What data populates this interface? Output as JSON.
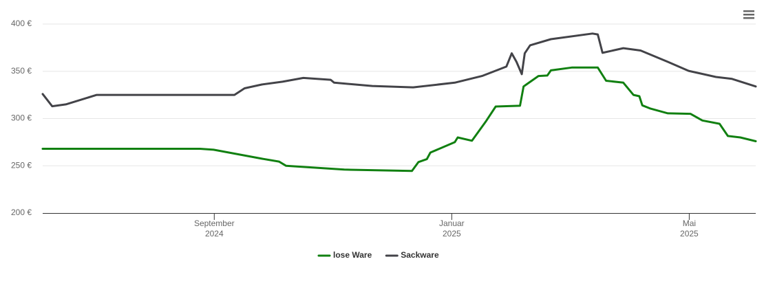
{
  "chart_data": {
    "type": "line",
    "series": [
      {
        "name": "lose Ware",
        "color": "#118011",
        "x": [
          5.11,
          7.76,
          7.99,
          8.8,
          9.09,
          9.21,
          10.19,
          11.33,
          11.44,
          11.58,
          11.64,
          12.05,
          12.1,
          12.34,
          12.57,
          12.74,
          13.15,
          13.21,
          13.46,
          13.61,
          13.67,
          14.02,
          14.46,
          14.6,
          14.89,
          15.06,
          15.16,
          15.21,
          15.35,
          15.64,
          16.02,
          16.22,
          16.51,
          16.65,
          16.86,
          17.12
        ],
        "values": [
          268,
          268,
          267,
          257.5,
          254.5,
          250,
          246,
          244.5,
          254,
          257,
          264,
          275,
          280,
          276.5,
          296.5,
          312.7,
          313.5,
          334,
          345,
          345.5,
          351,
          354,
          354,
          340,
          338,
          325,
          323.6,
          314,
          310.5,
          305.5,
          305,
          298,
          294.5,
          281.5,
          280,
          276
        ]
      },
      {
        "name": "Sackware",
        "color": "#434348",
        "x": [
          5.11,
          5.27,
          5.5,
          6.02,
          8.34,
          8.51,
          8.8,
          9.15,
          9.5,
          9.96,
          10.02,
          10.66,
          11.35,
          12.05,
          12.51,
          12.92,
          13.01,
          13.09,
          13.18,
          13.23,
          13.32,
          13.67,
          14.37,
          14.46,
          14.54,
          14.89,
          15.18,
          15.64,
          15.99,
          16.45,
          16.72,
          17.12
        ],
        "values": [
          326,
          313,
          315,
          325,
          325,
          332,
          336,
          339,
          343,
          341,
          338,
          334.5,
          333,
          338,
          345,
          355,
          369,
          360,
          347,
          369,
          377.5,
          384,
          390,
          389,
          369.5,
          374.5,
          372,
          360,
          350.5,
          344,
          342,
          334
        ]
      }
    ],
    "xlim": [
      5.11,
      17.12
    ],
    "xticks": [
      {
        "value": 8,
        "label": "September 2024"
      },
      {
        "value": 12,
        "label": "Januar 2025"
      },
      {
        "value": 16,
        "label": "Mai 2025"
      }
    ],
    "ylim": [
      200,
      400
    ],
    "yticks": [
      {
        "value": 200,
        "label": "200 €"
      },
      {
        "value": 250,
        "label": "250 €"
      },
      {
        "value": 300,
        "label": "300 €"
      },
      {
        "value": 350,
        "label": "350 €"
      },
      {
        "value": 400,
        "label": "400 €"
      }
    ],
    "grid": true
  }
}
